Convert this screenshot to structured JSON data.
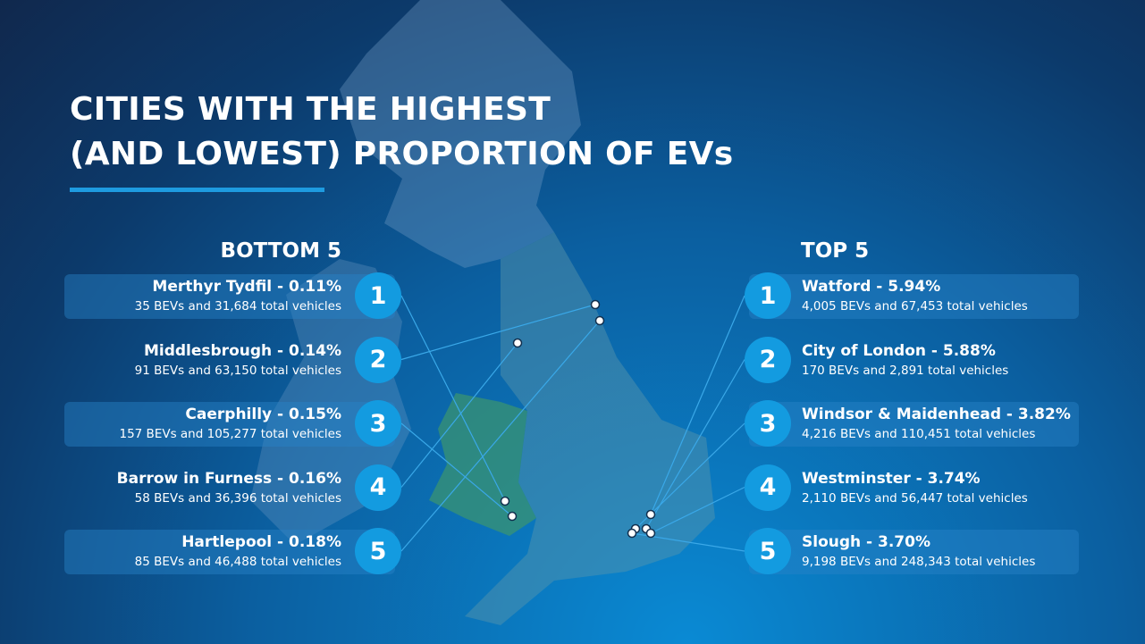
{
  "title": [
    "CITIES WITH THE HIGHEST",
    "(AND LOWEST) PROPORTION OF EVs"
  ],
  "bottom": {
    "heading": "BOTTOM 5",
    "items": [
      {
        "rank": 1,
        "label": "Merthyr Tydfil - 0.11%",
        "detail": "35 BEVs and 31,684 total vehicles"
      },
      {
        "rank": 2,
        "label": "Middlesbrough - 0.14%",
        "detail": "91 BEVs and 63,150 total vehicles"
      },
      {
        "rank": 3,
        "label": "Caerphilly - 0.15%",
        "detail": "157 BEVs and 105,277 total vehicles"
      },
      {
        "rank": 4,
        "label": "Barrow in Furness - 0.16%",
        "detail": "58 BEVs and 36,396 total vehicles"
      },
      {
        "rank": 5,
        "label": "Hartlepool - 0.18%",
        "detail": "85 BEVs and 46,488 total vehicles"
      }
    ]
  },
  "top": {
    "heading": "TOP 5",
    "items": [
      {
        "rank": 1,
        "label": "Watford - 5.94%",
        "detail": "4,005 BEVs and 67,453 total vehicles"
      },
      {
        "rank": 2,
        "label": "City of London - 5.88%",
        "detail": "170 BEVs and 2,891 total vehicles"
      },
      {
        "rank": 3,
        "label": "Windsor & Maidenhead - 3.82%",
        "detail": "4,216 BEVs and 110,451 total vehicles"
      },
      {
        "rank": 4,
        "label": "Westminster - 3.74%",
        "detail": "2,110 BEVs and 56,447 total vehicles"
      },
      {
        "rank": 5,
        "label": "Slough - 3.70%",
        "detail": "9,198 BEVs and 248,343 total vehicles"
      }
    ]
  }
}
